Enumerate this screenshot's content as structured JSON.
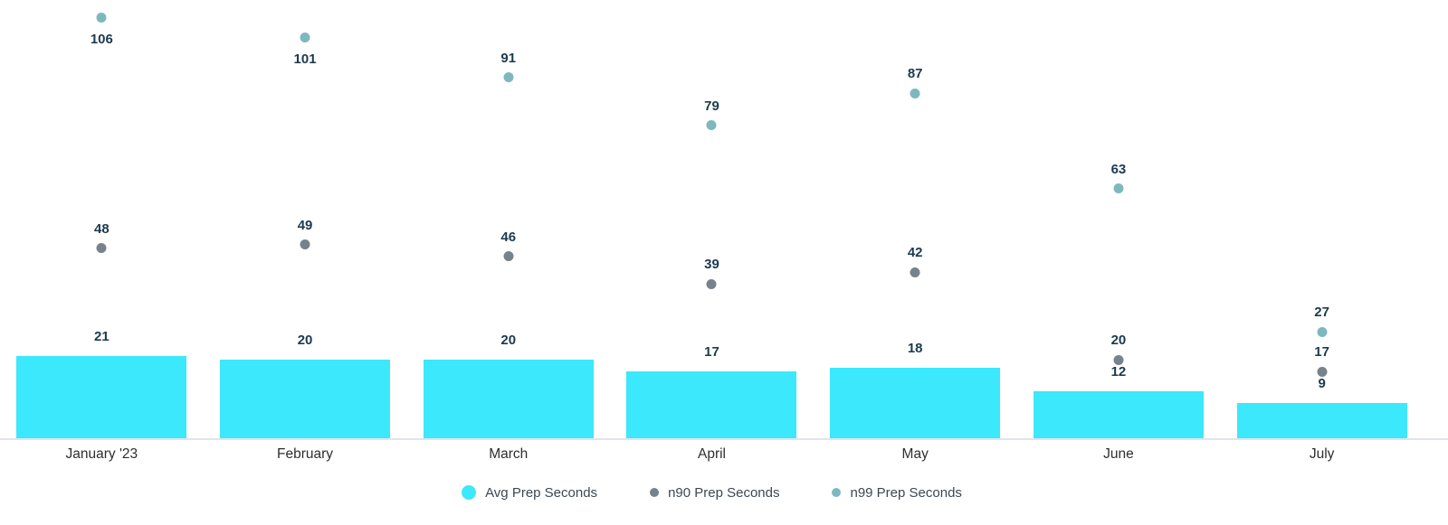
{
  "chart_data": {
    "type": "bar",
    "subtype": "bar-with-scatter-overlay",
    "title": "",
    "xlabel": "",
    "ylabel": "",
    "categories": [
      "January '23",
      "February",
      "March",
      "April",
      "May",
      "June",
      "July"
    ],
    "series": [
      {
        "name": "Avg Prep Seconds",
        "type": "bar",
        "color": "#3ce8fb",
        "values": [
          21,
          20,
          20,
          17,
          18,
          12,
          9
        ]
      },
      {
        "name": "n90 Prep Seconds",
        "type": "scatter",
        "color": "#76828c",
        "values": [
          48,
          49,
          46,
          39,
          42,
          20,
          17
        ]
      },
      {
        "name": "n99 Prep Seconds",
        "type": "scatter",
        "color": "#7db8bf",
        "values": [
          106,
          101,
          91,
          79,
          87,
          63,
          27
        ],
        "label_below_indices": [
          0,
          1
        ]
      }
    ],
    "ylim": [
      0,
      110.5
    ],
    "grid": false,
    "value_labels": true,
    "legend_position": "bottom",
    "colors": {
      "value_label": "#1c3a4e",
      "category_label": "#2e2e2e",
      "legend_text": "#3c4852",
      "axis_line": "#e3e3ec",
      "background": "#ffffff"
    }
  }
}
